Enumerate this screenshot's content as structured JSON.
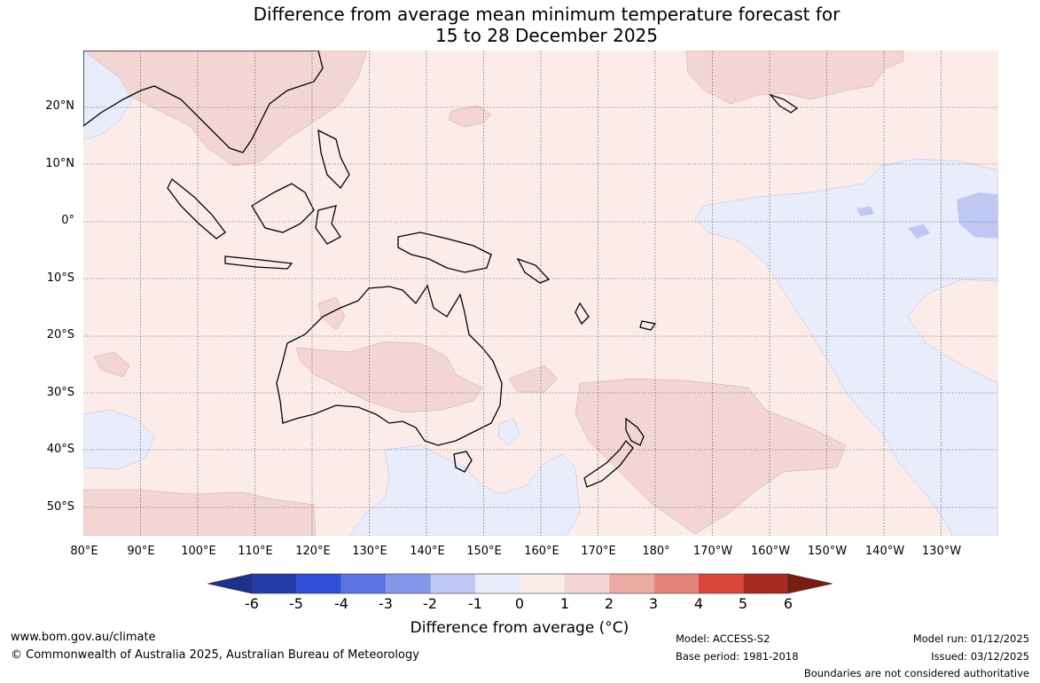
{
  "title": {
    "line1": "Difference from average mean minimum temperature forecast for",
    "line2": "15 to 28 December 2025"
  },
  "map": {
    "lat_labels": [
      "20°N",
      "10°N",
      "0°",
      "10°S",
      "20°S",
      "30°S",
      "40°S",
      "50°S"
    ],
    "lon_labels": [
      "80°E",
      "90°E",
      "100°E",
      "110°E",
      "120°E",
      "130°E",
      "140°E",
      "150°E",
      "160°E",
      "170°E",
      "180°",
      "170°W",
      "160°W",
      "150°W",
      "140°W",
      "130°W"
    ],
    "extent": {
      "lon_min": 80,
      "lon_max": 240,
      "lat_min": -55,
      "lat_max": 30
    }
  },
  "colorbar": {
    "ticks": [
      "-6",
      "-5",
      "-4",
      "-3",
      "-2",
      "-1",
      "0",
      "1",
      "2",
      "3",
      "4",
      "5",
      "6"
    ],
    "colors": [
      "#1f2f8c",
      "#253ca8",
      "#2f4fd8",
      "#5b72e2",
      "#8497e8",
      "#bfc7f2",
      "#e8ecfb",
      "#fbecea",
      "#f3d6d3",
      "#eaaba3",
      "#e3837a",
      "#d9473a",
      "#a82a22",
      "#7a1c14"
    ],
    "label": "Difference from average (°C)"
  },
  "footer": {
    "website": "www.bom.gov.au/climate",
    "copyright": "© Commonwealth of Australia 2025, Australian Bureau of Meteorology",
    "model": "Model: ACCESS-S2",
    "base_period": "Base period: 1981-2018",
    "model_run": "Model run: 01/12/2025",
    "issued": "Issued: 03/12/2025",
    "disclaimer": "Boundaries are not considered authoritative"
  }
}
